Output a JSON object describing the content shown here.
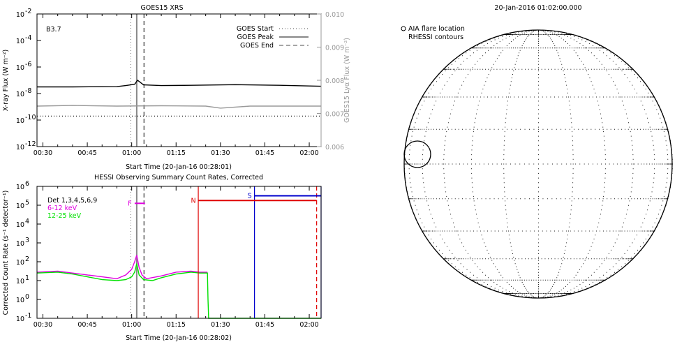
{
  "chart_data": [
    {
      "type": "line",
      "title": "GOES15 XRS",
      "class_label": "B3.7",
      "xlabel": "Start Time (20-Jan-16 00:28:01)",
      "ylabel": "X-ray Flux (W m⁻²)",
      "y2label": "GOES15 Lyα Flux (W m⁻²)",
      "ylog": true,
      "xlim": [
        28.0,
        124.0
      ],
      "ylim": [
        -12,
        -2
      ],
      "y2lim": [
        0.006,
        0.01
      ],
      "x_ticks": [
        30,
        45,
        60,
        75,
        90,
        105,
        120
      ],
      "x_tick_labels": [
        "00:30",
        "00:45",
        "01:00",
        "01:15",
        "01:30",
        "01:45",
        "02:00"
      ],
      "y_ticks": [
        -12,
        -10,
        -8,
        -6,
        -4,
        -2
      ],
      "y_tick_labels": [
        "10",
        "10",
        "10",
        "10",
        "10",
        "10"
      ],
      "y_tick_exponents": [
        "-12",
        "-10",
        "-8",
        "-6",
        "-4",
        "-2"
      ],
      "y2_ticks": [
        0.006,
        0.007,
        0.008,
        0.009,
        0.01
      ],
      "y2_tick_labels": [
        "0.006",
        "0.007",
        "0.008",
        "0.009",
        "0.010"
      ],
      "legend": [
        {
          "name": "GOES Start",
          "style": "dotted",
          "color": "#888888"
        },
        {
          "name": "GOES Peak",
          "style": "solid",
          "color": "#888888"
        },
        {
          "name": "GOES End",
          "style": "dashed",
          "color": "#888888"
        }
      ],
      "vlines": {
        "start": 59.7,
        "peak": 61.7,
        "end": 64.2
      },
      "series": [
        {
          "color": "#000000",
          "style": "solid",
          "x": [
            28,
            40,
            55,
            58,
            61,
            62,
            64,
            70,
            80,
            95,
            110,
            124
          ],
          "y": [
            -7.5,
            -7.5,
            -7.48,
            -7.4,
            -7.3,
            -7.0,
            -7.35,
            -7.4,
            -7.38,
            -7.33,
            -7.38,
            -7.45
          ]
        },
        {
          "color": "#999999",
          "style": "solid",
          "x": [
            28,
            40,
            55,
            70,
            85,
            90,
            100,
            110,
            124
          ],
          "y": [
            -8.95,
            -8.9,
            -8.95,
            -8.92,
            -8.95,
            -9.1,
            -8.95,
            -8.95,
            -8.95
          ]
        },
        {
          "color": "#000000",
          "style": "dotted",
          "x": [
            28,
            124
          ],
          "y": [
            -9.7,
            -9.7
          ]
        }
      ]
    },
    {
      "type": "line",
      "title": "HESSI Observing Summary Count Rates, Corrected",
      "xlabel": "Start Time (20-Jan-16 00:28:02)",
      "ylabel": "Corrected Count Rate (s⁻¹ detector⁻¹)",
      "ylog": true,
      "xlim": [
        28.0,
        124.0
      ],
      "ylim": [
        -1,
        6
      ],
      "x_ticks": [
        30,
        45,
        60,
        75,
        90,
        105,
        120
      ],
      "x_tick_labels": [
        "00:30",
        "00:45",
        "01:00",
        "01:15",
        "01:30",
        "01:45",
        "02:00"
      ],
      "y_ticks": [
        -1,
        0,
        1,
        2,
        3,
        4,
        5,
        6
      ],
      "y_tick_labels": [
        "10",
        "10",
        "10",
        "10",
        "10",
        "10",
        "10",
        "10"
      ],
      "y_tick_exponents": [
        "-1",
        "0",
        "1",
        "2",
        "3",
        "4",
        "5",
        "6"
      ],
      "legend": [
        {
          "name": "Det 1,3,4,5,6,9",
          "color": "#000000"
        },
        {
          "name": "6-12 keV",
          "color": "#e000e0"
        },
        {
          "name": "12-25 keV",
          "color": "#00e000"
        }
      ],
      "vlines": {
        "start": 59.7,
        "peak": 61.7,
        "end": 64.2
      },
      "flags": [
        {
          "label": "F",
          "color": "#e000e0",
          "x0": 61.0,
          "x1": 64.5,
          "y": 5.1
        },
        {
          "label": "N",
          "color": "#e00000",
          "x0": 82.5,
          "x1": 122.5,
          "y": 5.25
        },
        {
          "label": "S",
          "color": "#0000cc",
          "x0": 101.5,
          "x1": 124.0,
          "y": 5.5
        }
      ],
      "series": [
        {
          "name": "6-12 keV",
          "color": "#e000e0",
          "x": [
            28,
            35,
            40,
            45,
            50,
            55,
            58,
            60,
            61,
            61.7,
            62.5,
            63.5,
            65,
            70,
            75,
            80,
            83,
            85.6
          ],
          "y": [
            1.45,
            1.5,
            1.4,
            1.3,
            1.2,
            1.1,
            1.3,
            1.6,
            2.0,
            2.35,
            1.7,
            1.3,
            1.1,
            1.25,
            1.45,
            1.5,
            1.45,
            1.45
          ]
        },
        {
          "name": "12-25 keV",
          "color": "#00e000",
          "x": [
            28,
            35,
            40,
            45,
            50,
            55,
            58,
            60,
            61,
            61.7,
            62.5,
            64,
            67,
            70,
            75,
            80,
            83,
            85.6,
            85.8,
            86,
            124
          ],
          "y": [
            1.4,
            1.45,
            1.35,
            1.2,
            1.05,
            1.0,
            1.05,
            1.2,
            1.45,
            1.9,
            1.3,
            1.05,
            1.0,
            1.15,
            1.35,
            1.45,
            1.4,
            1.4,
            0.0,
            -1.0,
            -1.0
          ]
        }
      ],
      "markers": [
        {
          "color": "#e00000",
          "x": 82.5,
          "style": "solid"
        },
        {
          "color": "#e00000",
          "x": 122.5,
          "style": "dashed"
        },
        {
          "color": "#0000cc",
          "x": 101.5,
          "style": "solid"
        },
        {
          "color": "#0000cc",
          "x": 124.0,
          "style": "solid"
        }
      ]
    },
    {
      "type": "other",
      "title": "20-Jan-2016 01:02:00.000",
      "legend": [
        "AIA flare location",
        "RHESSI contours"
      ]
    }
  ]
}
